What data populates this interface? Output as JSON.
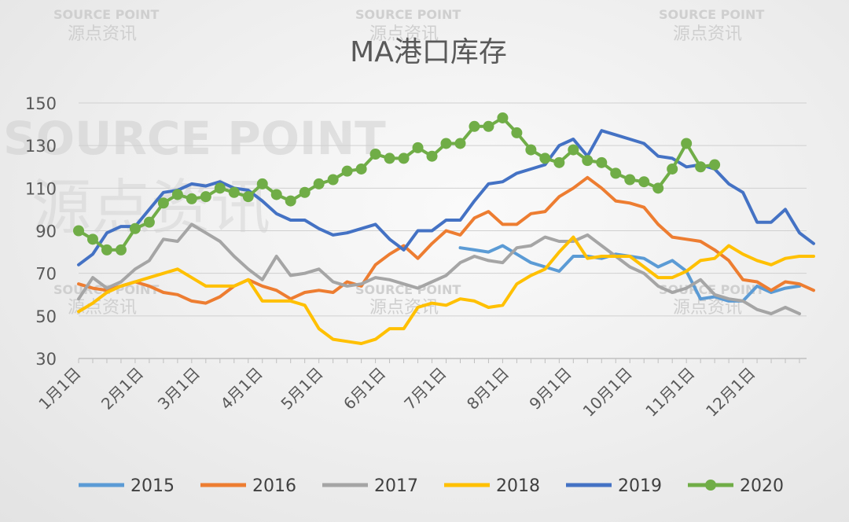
{
  "watermark": {
    "brand_en": "SOURCE POINT",
    "brand_cn": "源点资讯"
  },
  "chart_data": {
    "type": "line",
    "title": "MA港口库存",
    "xlabel": "",
    "ylabel": "",
    "ylim": [
      30,
      150
    ],
    "yticks": [
      30,
      50,
      70,
      90,
      110,
      130,
      150
    ],
    "xlim": [
      1,
      52.5
    ],
    "x_tick_labels": [
      "1月1日",
      "2月1日",
      "3月1日",
      "4月1日",
      "5月1日",
      "6月1日",
      "7月1日",
      "8月1日",
      "9月1日",
      "10月1日",
      "11月1日",
      "12月1日"
    ],
    "x_tick_weeks": [
      1,
      5.43,
      9.43,
      13.86,
      18.14,
      22.57,
      26.86,
      31.29,
      35.71,
      40,
      44.43,
      48.71
    ],
    "x_unit": "week of year",
    "grid": "horizontal",
    "legend_position": "bottom",
    "series": [
      {
        "name": "2015",
        "color": "#5b9bd5",
        "markers": false,
        "x_start": 28,
        "values": [
          82,
          81,
          80,
          83,
          79,
          75,
          73,
          71,
          78,
          78,
          77,
          79,
          78,
          77,
          73,
          76,
          71,
          58,
          59,
          57,
          57,
          64,
          61,
          63,
          64
        ]
      },
      {
        "name": "2016",
        "color": "#ed7d31",
        "markers": false,
        "x_start": 1,
        "values": [
          65,
          63,
          62,
          64,
          66,
          64,
          61,
          60,
          57,
          56,
          59,
          64,
          67,
          64,
          62,
          58,
          61,
          62,
          61,
          66,
          64,
          74,
          79,
          83,
          77,
          84,
          90,
          88,
          96,
          99,
          93,
          93,
          98,
          99,
          106,
          110,
          115,
          110,
          104,
          103,
          101,
          93,
          87,
          86,
          85,
          81,
          76,
          67,
          66,
          62,
          66,
          65,
          62
        ]
      },
      {
        "name": "2017",
        "color": "#a5a5a5",
        "markers": false,
        "x_start": 1,
        "values": [
          58,
          68,
          63,
          66,
          72,
          76,
          86,
          85,
          93,
          89,
          85,
          78,
          72,
          67,
          78,
          69,
          70,
          72,
          66,
          64,
          65,
          68,
          67,
          65,
          63,
          66,
          69,
          75,
          78,
          76,
          75,
          82,
          83,
          87,
          85,
          85,
          88,
          83,
          78,
          73,
          70,
          64,
          61,
          63,
          67,
          60,
          58,
          57,
          53,
          51,
          54,
          51
        ]
      },
      {
        "name": "2018",
        "color": "#ffc000",
        "markers": false,
        "x_start": 1,
        "values": [
          52,
          56,
          61,
          64,
          66,
          68,
          70,
          72,
          68,
          64,
          64,
          64,
          67,
          57,
          57,
          57,
          55,
          44,
          39,
          38,
          37,
          39,
          44,
          44,
          54,
          56,
          55,
          58,
          57,
          54,
          55,
          65,
          69,
          72,
          80,
          87,
          77,
          78,
          78,
          78,
          73,
          68,
          68,
          71,
          76,
          77,
          83,
          79,
          76,
          74,
          77,
          78,
          78
        ]
      },
      {
        "name": "2019",
        "color": "#4472c4",
        "markers": false,
        "x_start": 1,
        "values": [
          74,
          79,
          89,
          92,
          92,
          100,
          108,
          109,
          112,
          111,
          113,
          110,
          109,
          104,
          98,
          95,
          95,
          91,
          88,
          89,
          91,
          93,
          86,
          81,
          90,
          90,
          95,
          95,
          104,
          112,
          113,
          117,
          119,
          121,
          130,
          133,
          125,
          137,
          135,
          133,
          131,
          125,
          124,
          120,
          121,
          119,
          112,
          108,
          94,
          94,
          100,
          89,
          84
        ]
      },
      {
        "name": "2020",
        "color": "#70ad47",
        "markers": true,
        "x_start": 1,
        "values": [
          90,
          86,
          81,
          81,
          91,
          94,
          103,
          107,
          105,
          106,
          110,
          108,
          106,
          112,
          107,
          104,
          108,
          112,
          114,
          118,
          119,
          126,
          124,
          124,
          129,
          125,
          131,
          131,
          139,
          139,
          143,
          136,
          128,
          124,
          122,
          128,
          123,
          122,
          117,
          114,
          113,
          110,
          119,
          131,
          120,
          121
        ]
      }
    ]
  }
}
